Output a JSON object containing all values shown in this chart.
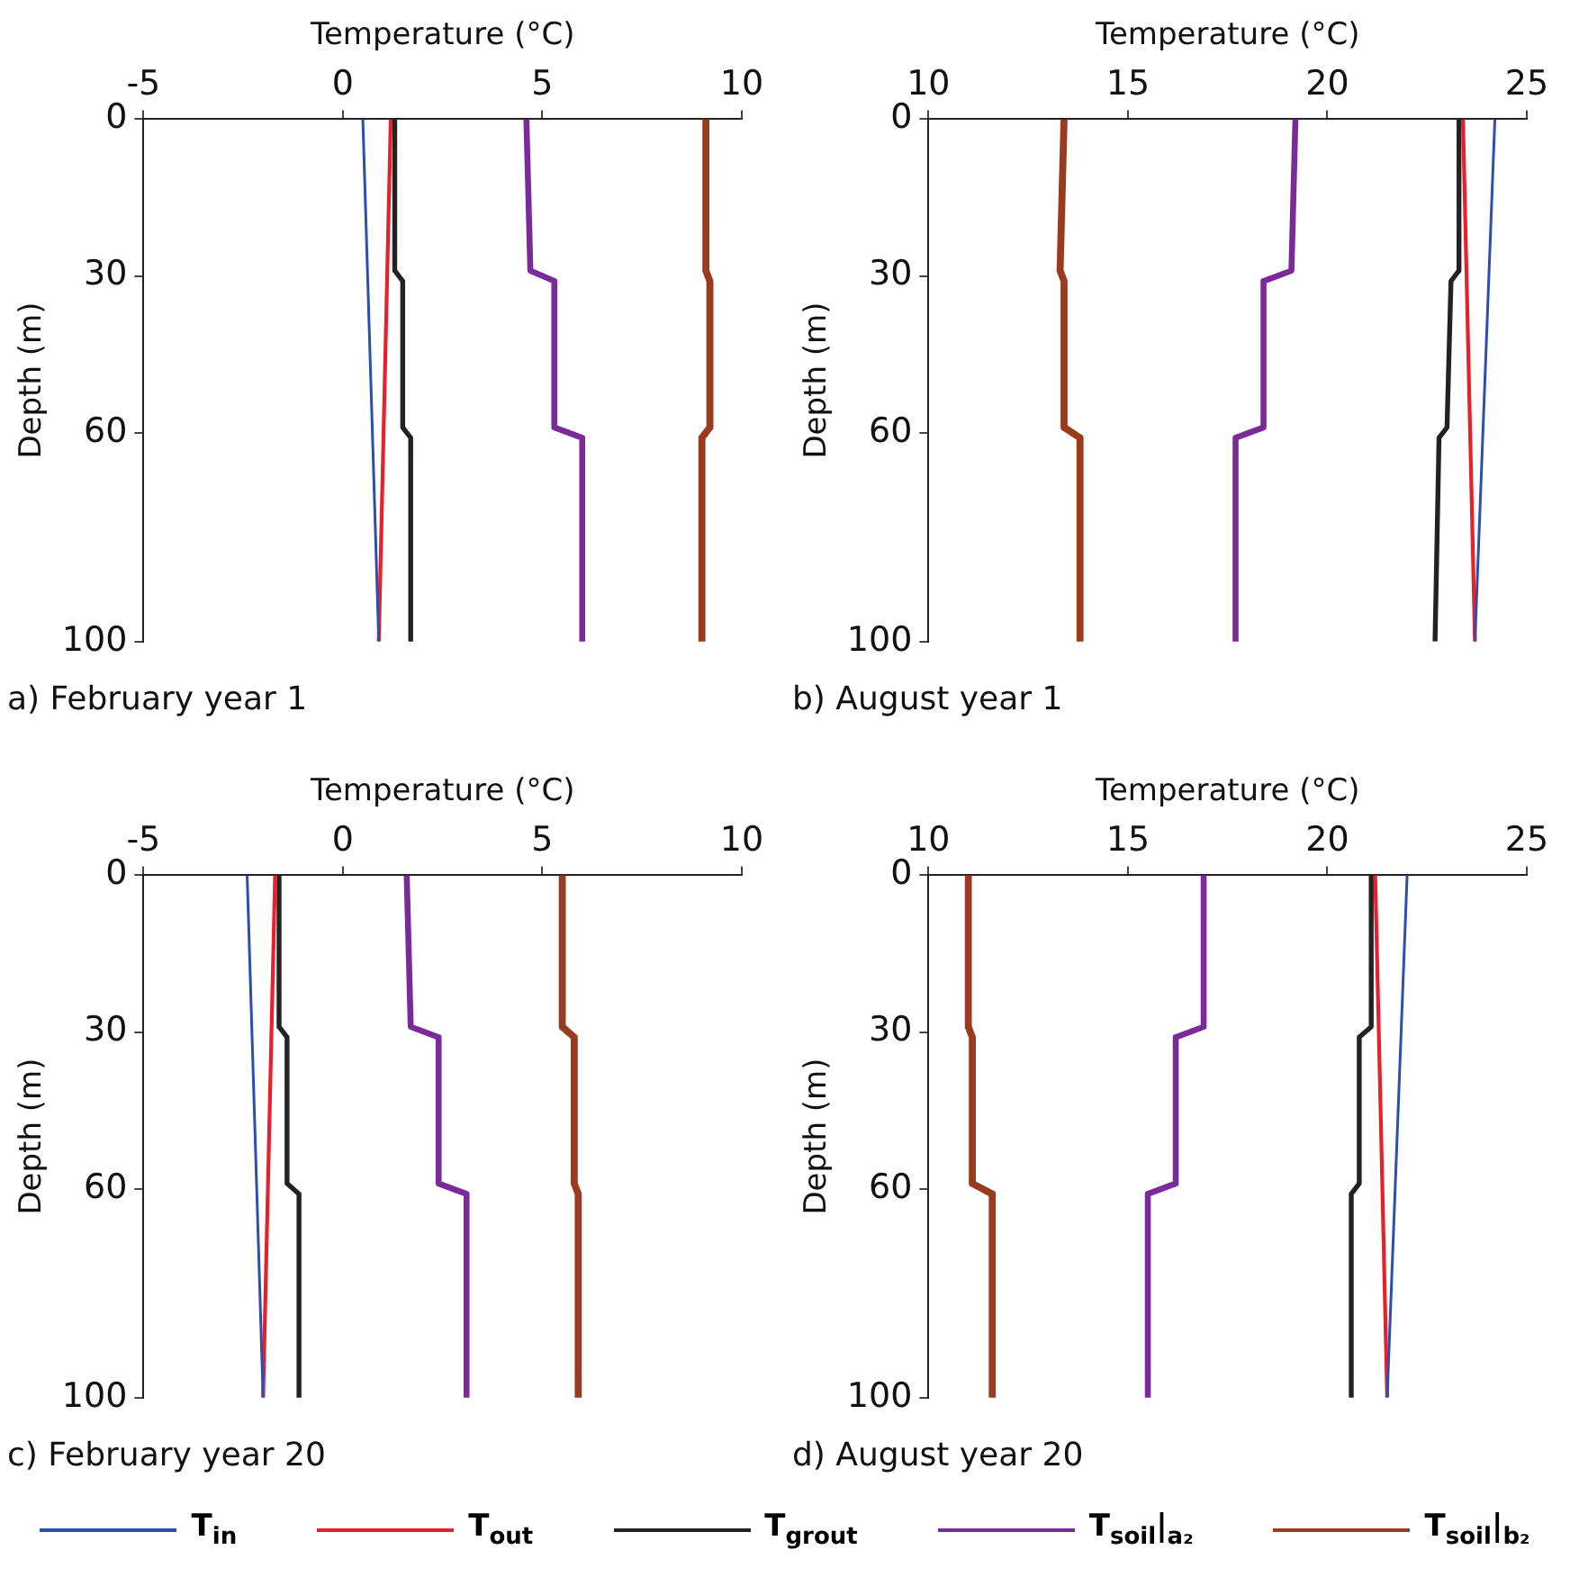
{
  "chart_data": [
    {
      "type": "line",
      "title": "a) February year 1",
      "xlabel": "Temperature (°C)",
      "ylabel": "Depth (m)",
      "xlim": [
        -5,
        10
      ],
      "xticks": [
        -5,
        0,
        5,
        10
      ],
      "ylim": [
        100,
        0
      ],
      "yticks": [
        0,
        30,
        60,
        100
      ],
      "grid": false,
      "legend": false,
      "marker": "none",
      "series": [
        {
          "color": "#2a4fb0",
          "x": [
            0.5,
            0.9
          ],
          "values": [
            0,
            100
          ]
        },
        {
          "color": "#e8202a",
          "x": [
            1.2,
            0.9
          ],
          "values": [
            0,
            100
          ]
        },
        {
          "color": "#222222",
          "x": [
            1.3,
            1.3,
            1.5,
            1.5,
            1.7,
            1.7
          ],
          "values": [
            0,
            29,
            31,
            59,
            61,
            100
          ]
        },
        {
          "color": "#7a2a9a",
          "x": [
            4.6,
            4.7,
            5.3,
            5.3,
            6.0,
            6.0
          ],
          "values": [
            0,
            29,
            31,
            59,
            61,
            100
          ]
        },
        {
          "color": "#9a3a1e",
          "x": [
            9.1,
            9.1,
            9.2,
            9.2,
            9.0,
            9.0
          ],
          "values": [
            0,
            29,
            31,
            59,
            61,
            100
          ]
        }
      ]
    },
    {
      "type": "line",
      "title": "b) August year 1",
      "xlabel": "Temperature (°C)",
      "ylabel": "Depth (m)",
      "xlim": [
        10,
        25
      ],
      "xticks": [
        10,
        15,
        20,
        25
      ],
      "ylim": [
        100,
        0
      ],
      "yticks": [
        0,
        30,
        60,
        100
      ],
      "grid": false,
      "legend": false,
      "marker": "none",
      "series": [
        {
          "color": "#2a4fb0",
          "x": [
            24.2,
            23.7
          ],
          "values": [
            0,
            100
          ]
        },
        {
          "color": "#e8202a",
          "x": [
            23.4,
            23.7
          ],
          "values": [
            0,
            100
          ]
        },
        {
          "color": "#222222",
          "x": [
            23.3,
            23.3,
            23.1,
            23.0,
            22.8,
            22.7
          ],
          "values": [
            0,
            29,
            31,
            59,
            61,
            100
          ]
        },
        {
          "color": "#7a2a9a",
          "x": [
            19.2,
            19.1,
            18.4,
            18.4,
            17.7,
            17.7
          ],
          "values": [
            0,
            29,
            31,
            59,
            61,
            100
          ]
        },
        {
          "color": "#9a3a1e",
          "x": [
            13.4,
            13.3,
            13.4,
            13.4,
            13.8,
            13.8
          ],
          "values": [
            0,
            29,
            31,
            59,
            61,
            100
          ]
        }
      ]
    },
    {
      "type": "line",
      "title": "c) February year 20",
      "xlabel": "Temperature (°C)",
      "ylabel": "Depth (m)",
      "xlim": [
        -5,
        10
      ],
      "xticks": [
        -5,
        0,
        5,
        10
      ],
      "ylim": [
        100,
        0
      ],
      "yticks": [
        0,
        30,
        60,
        100
      ],
      "grid": false,
      "legend": false,
      "marker": "none",
      "series": [
        {
          "color": "#2a4fb0",
          "x": [
            -2.4,
            -2.0
          ],
          "values": [
            0,
            100
          ]
        },
        {
          "color": "#e8202a",
          "x": [
            -1.7,
            -2.0
          ],
          "values": [
            0,
            100
          ]
        },
        {
          "color": "#222222",
          "x": [
            -1.6,
            -1.6,
            -1.4,
            -1.4,
            -1.1,
            -1.1
          ],
          "values": [
            0,
            29,
            31,
            59,
            61,
            100
          ]
        },
        {
          "color": "#7a2a9a",
          "x": [
            1.6,
            1.7,
            2.4,
            2.4,
            3.1,
            3.1
          ],
          "values": [
            0,
            29,
            31,
            59,
            61,
            100
          ]
        },
        {
          "color": "#9a3a1e",
          "x": [
            5.5,
            5.5,
            5.8,
            5.8,
            5.9,
            5.9
          ],
          "values": [
            0,
            29,
            31,
            59,
            61,
            100
          ]
        }
      ]
    },
    {
      "type": "line",
      "title": "d) August year 20",
      "xlabel": "Temperature (°C)",
      "ylabel": "Depth (m)",
      "xlim": [
        10,
        25
      ],
      "xticks": [
        10,
        15,
        20,
        25
      ],
      "ylim": [
        100,
        0
      ],
      "yticks": [
        0,
        30,
        60,
        100
      ],
      "grid": false,
      "legend": "bottom",
      "marker": "none",
      "series": [
        {
          "name": "T$_{in}$",
          "color": "#2a4fb0",
          "x": [
            22.0,
            21.5
          ],
          "values": [
            0,
            100
          ]
        },
        {
          "name": "T$_{out}$",
          "color": "#e8202a",
          "x": [
            21.2,
            21.5
          ],
          "values": [
            0,
            100
          ]
        },
        {
          "name": "T$_{grout}$",
          "color": "#222222",
          "x": [
            21.1,
            21.1,
            20.8,
            20.8,
            20.6,
            20.6
          ],
          "values": [
            0,
            29,
            31,
            59,
            61,
            100
          ]
        },
        {
          "name": "T$_{soil}$|$_{a₂}$",
          "color": "#7a2a9a",
          "x": [
            16.9,
            16.9,
            16.2,
            16.2,
            15.5,
            15.5
          ],
          "values": [
            0,
            29,
            31,
            59,
            61,
            100
          ]
        },
        {
          "name": "T$_{soil}$|$_{b₂}$",
          "color": "#9a3a1e",
          "x": [
            11.0,
            11.0,
            11.1,
            11.1,
            11.6,
            11.6
          ],
          "values": [
            0,
            29,
            31,
            59,
            61,
            100
          ]
        }
      ]
    }
  ]
}
